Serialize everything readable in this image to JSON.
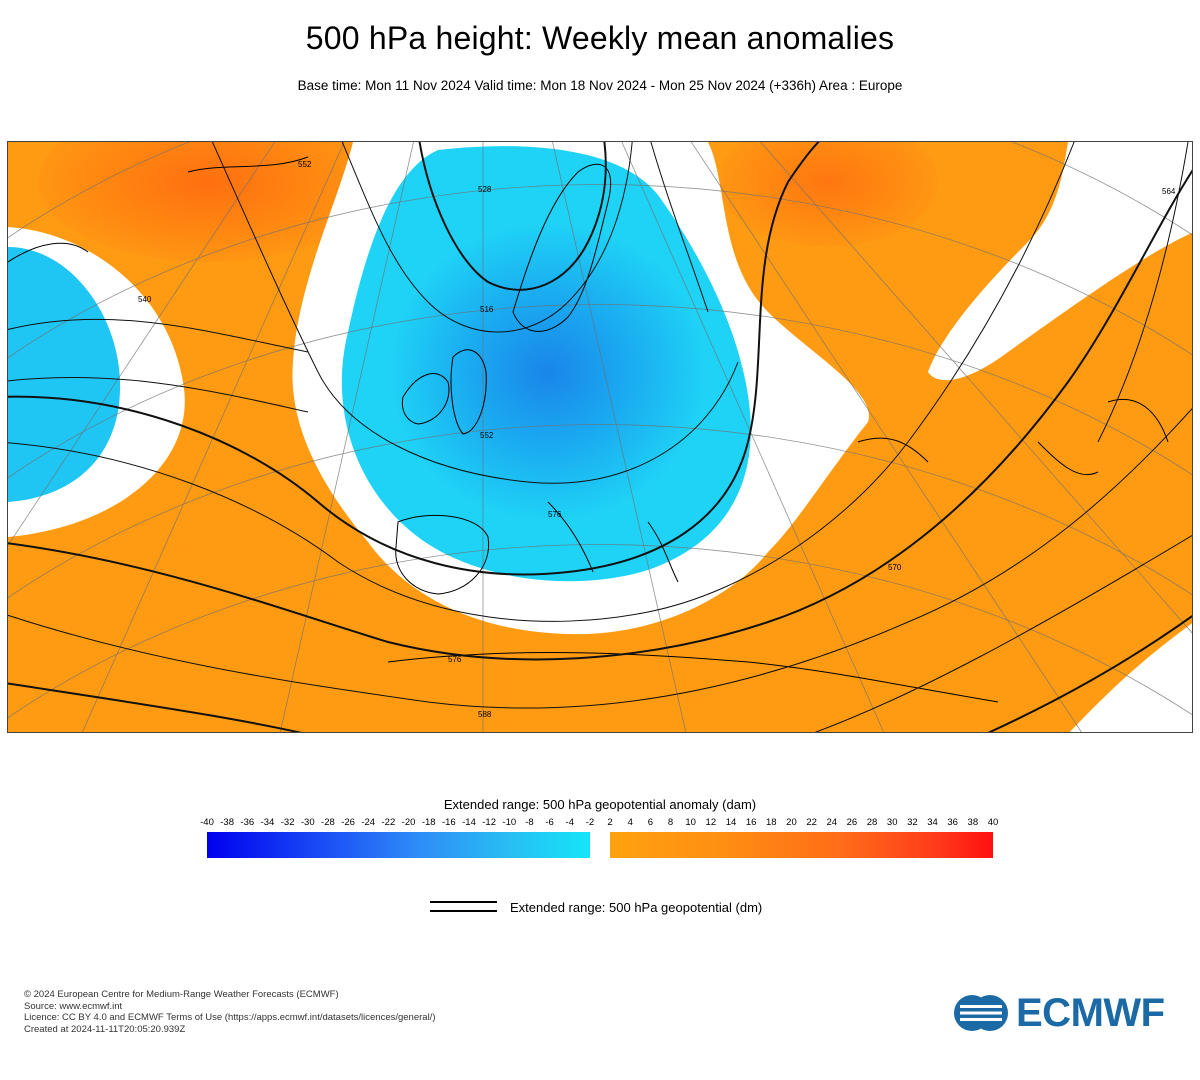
{
  "header": {
    "title": "500 hPa height: Weekly mean anomalies",
    "subtitle": "Base time: Mon 11 Nov 2024 Valid time: Mon 18 Nov 2024 - Mon 25 Nov 2024 (+336h) Area : Europe"
  },
  "map": {
    "area": "Europe",
    "contour_labels": [
      "540",
      "552",
      "528",
      "516",
      "552",
      "576",
      "576",
      "588",
      "570",
      "564"
    ],
    "colors": {
      "negative_anomaly": "#1fc6f4",
      "negative_core": "#1e90ef",
      "positive_anomaly": "#ff9b12",
      "positive_core": "#ff6a10",
      "neutral": "#ffffff"
    }
  },
  "colorbar": {
    "title": "Extended range: 500 hPa geopotential anomaly (dam)",
    "ticks": [
      "-40",
      "-38",
      "-36",
      "-34",
      "-32",
      "-30",
      "-28",
      "-26",
      "-24",
      "-22",
      "-20",
      "-18",
      "-16",
      "-14",
      "-12",
      "-10",
      "-8",
      "-6",
      "-4",
      "-2",
      "2",
      "4",
      "6",
      "8",
      "10",
      "12",
      "14",
      "16",
      "18",
      "20",
      "22",
      "24",
      "26",
      "28",
      "30",
      "32",
      "34",
      "36",
      "38",
      "40"
    ]
  },
  "legend": {
    "contour_label": "Extended range: 500 hPa geopotential (dm)"
  },
  "credits": {
    "line1": "© 2024 European Centre for Medium-Range Weather Forecasts (ECMWF)",
    "line2": "Source: www.ecmwf.int",
    "line3": "Licence: CC BY 4.0 and ECMWF Terms of Use (https://apps.ecmwf.int/datasets/licences/general/)",
    "line4": "Created at 2024-11-11T20:05:20.939Z"
  },
  "logo": {
    "text": "ECMWF",
    "color": "#1b6aa6"
  }
}
